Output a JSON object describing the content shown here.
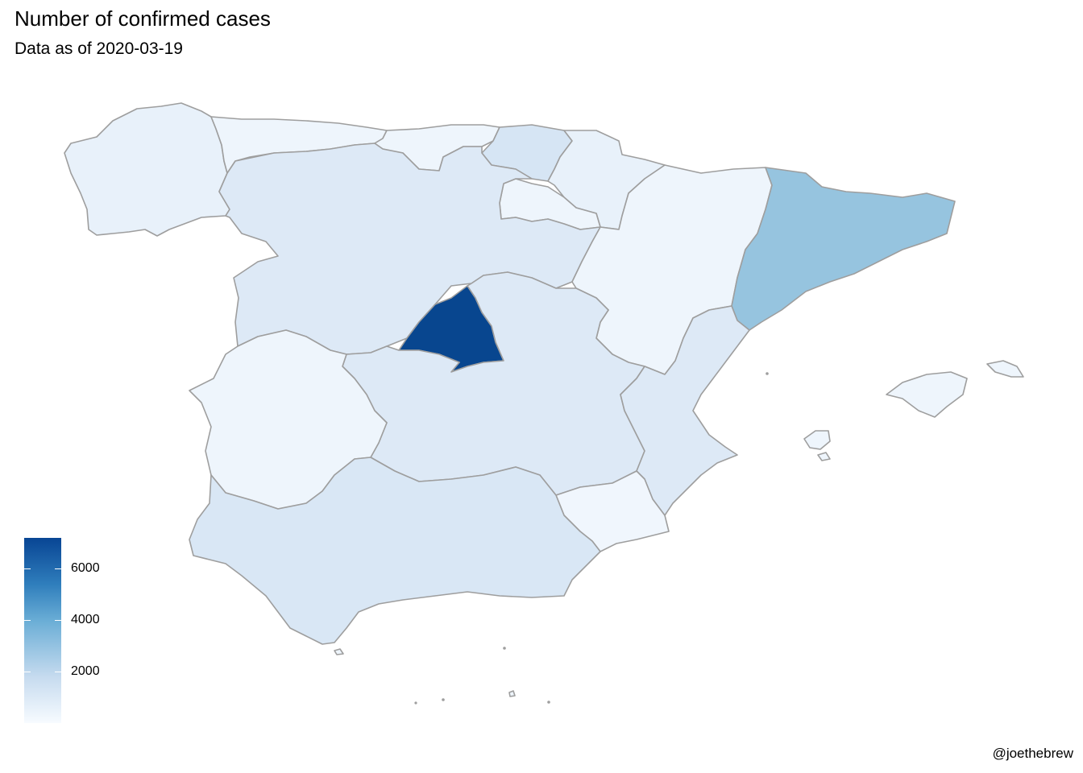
{
  "title": "Number of confirmed cases",
  "subtitle": "Data as of 2020-03-19",
  "caption": "@joethebrew",
  "legend": {
    "labels": [
      "6000",
      "4000",
      "2000"
    ],
    "colors": {
      "high": "#084594",
      "mid": "#6baed6",
      "low": "#f7fbff"
    }
  },
  "map_data": {
    "type": "choropleth",
    "country": "Spain",
    "regions": [
      {
        "name": "Galicia",
        "color": "#e8f1fa"
      },
      {
        "name": "Asturias",
        "color": "#eef5fc"
      },
      {
        "name": "Cantabria",
        "color": "#eef5fc"
      },
      {
        "name": "País Vasco",
        "color": "#d6e5f4"
      },
      {
        "name": "Navarra",
        "color": "#e8f1fa"
      },
      {
        "name": "La Rioja",
        "color": "#eef5fc"
      },
      {
        "name": "Castilla y León",
        "color": "#dde9f6"
      },
      {
        "name": "Aragón",
        "color": "#eef5fc"
      },
      {
        "name": "Cataluña",
        "color": "#96c4df"
      },
      {
        "name": "Madrid",
        "color": "#08468f"
      },
      {
        "name": "Castilla-La Mancha",
        "color": "#dde9f6"
      },
      {
        "name": "Extremadura",
        "color": "#eef5fc"
      },
      {
        "name": "Comunidad Valenciana",
        "color": "#dde9f6"
      },
      {
        "name": "Región de Murcia",
        "color": "#f0f6fd"
      },
      {
        "name": "Andalucía",
        "color": "#d9e7f5"
      },
      {
        "name": "Islas Baleares",
        "color": "#eef5fc"
      },
      {
        "name": "Ceuta",
        "color": "#eef5fc"
      },
      {
        "name": "Melilla",
        "color": "#eef5fc"
      }
    ]
  }
}
